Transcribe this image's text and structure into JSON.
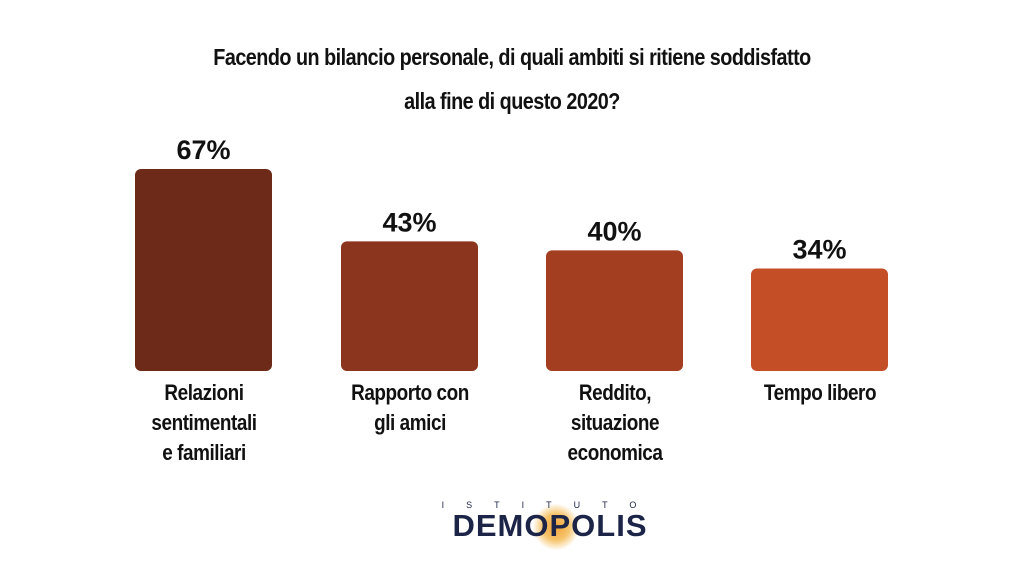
{
  "title": {
    "line1": "Facendo un bilancio personale, di quali ambiti si ritiene soddisfatto",
    "line2": "alla fine di questo 2020?"
  },
  "chart_data": {
    "type": "bar",
    "title": "Facendo un bilancio personale, di quali ambiti si ritiene soddisfatto alla fine di questo 2020?",
    "categories": [
      "Relazioni\nsentimentali\ne familiari",
      "Rapporto con\ngli amici",
      "Reddito,\nsituazione\neconomica",
      "Tempo libero"
    ],
    "values": [
      67,
      43,
      40,
      34
    ],
    "value_labels": [
      "67%",
      "43%",
      "40%",
      "34%"
    ],
    "unit": "%",
    "colors": [
      "#6e2a18",
      "#8c351e",
      "#a33f20",
      "#c44e25"
    ],
    "ylim": [
      0,
      67
    ],
    "grid": false,
    "legend": "none"
  },
  "logo": {
    "top": "ISTITUTO",
    "main": "DEMOPOLIS",
    "color": "#1c2447",
    "accent": "#f2a33a"
  }
}
